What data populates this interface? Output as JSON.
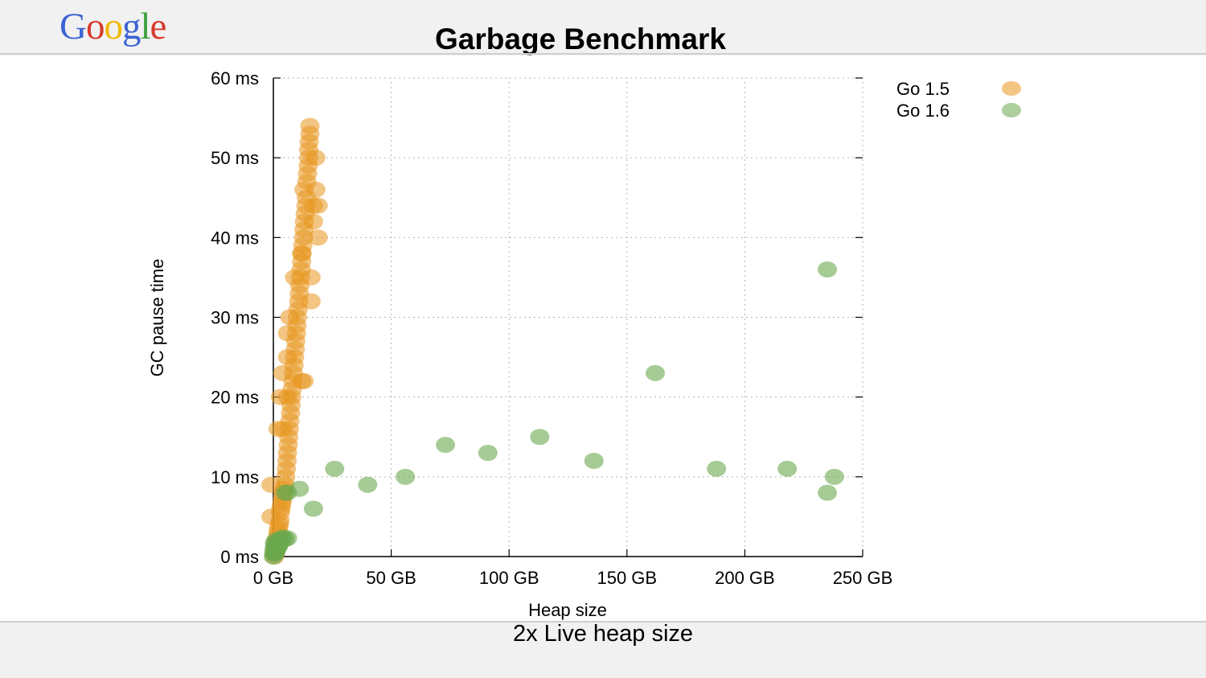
{
  "header": {
    "logo_text": "Google",
    "logo_letters": [
      {
        "ch": "G",
        "color": "#3c64d2"
      },
      {
        "ch": "o",
        "color": "#d83a2b"
      },
      {
        "ch": "o",
        "color": "#f1b800"
      },
      {
        "ch": "g",
        "color": "#3c64d2"
      },
      {
        "ch": "l",
        "color": "#3ea13f"
      },
      {
        "ch": "e",
        "color": "#d83a2b"
      }
    ],
    "title": "Garbage Benchmark"
  },
  "footer": {
    "caption": "2x Live heap size"
  },
  "chart_data": {
    "type": "scatter",
    "xlabel": "Heap size",
    "ylabel": "GC pause time",
    "xlim": [
      0,
      250
    ],
    "ylim": [
      0,
      60
    ],
    "x_ticks": [
      0,
      50,
      100,
      150,
      200,
      250
    ],
    "y_ticks": [
      0,
      10,
      20,
      30,
      40,
      50,
      60
    ],
    "x_tick_labels": [
      "0 GB",
      "50 GB",
      "100 GB",
      "150 GB",
      "200 GB",
      "250 GB"
    ],
    "y_tick_labels": [
      "0 ms",
      "10 ms",
      "20 ms",
      "30 ms",
      "40 ms",
      "50 ms",
      "60 ms"
    ],
    "grid": true,
    "legend_position": "top-right",
    "series": [
      {
        "name": "Go 1.5",
        "color": "#e8961e",
        "points": [
          [
            0.5,
            0
          ],
          [
            0.8,
            0.5
          ],
          [
            1,
            1
          ],
          [
            1.3,
            1.5
          ],
          [
            1.5,
            2
          ],
          [
            1.8,
            2.5
          ],
          [
            2,
            3
          ],
          [
            2.2,
            3.5
          ],
          [
            2.5,
            4
          ],
          [
            2.8,
            4.5
          ],
          [
            -1,
            5
          ],
          [
            3,
            5.5
          ],
          [
            3.2,
            6
          ],
          [
            3.5,
            6.5
          ],
          [
            3.8,
            7
          ],
          [
            4,
            7.5
          ],
          [
            4.2,
            8
          ],
          [
            4.5,
            8.5
          ],
          [
            -1,
            9
          ],
          [
            5,
            9
          ],
          [
            5.2,
            10
          ],
          [
            5.5,
            11
          ],
          [
            5.8,
            12
          ],
          [
            6,
            13
          ],
          [
            6.3,
            14
          ],
          [
            6.5,
            15
          ],
          [
            6.8,
            16
          ],
          [
            2,
            16
          ],
          [
            7,
            17
          ],
          [
            7.3,
            18
          ],
          [
            7.5,
            19
          ],
          [
            3,
            20
          ],
          [
            7.8,
            20
          ],
          [
            8,
            21
          ],
          [
            8.3,
            22
          ],
          [
            4,
            23
          ],
          [
            8.5,
            23
          ],
          [
            8.8,
            24
          ],
          [
            9,
            25
          ],
          [
            6,
            25
          ],
          [
            9.3,
            26
          ],
          [
            9.5,
            27
          ],
          [
            6,
            28
          ],
          [
            9.8,
            28
          ],
          [
            10,
            29
          ],
          [
            7,
            30
          ],
          [
            10.2,
            30
          ],
          [
            10.5,
            31
          ],
          [
            10.8,
            32
          ],
          [
            11,
            33
          ],
          [
            11.2,
            34
          ],
          [
            11.5,
            35
          ],
          [
            9,
            35
          ],
          [
            11.8,
            36
          ],
          [
            12,
            37
          ],
          [
            12.2,
            38
          ],
          [
            12.5,
            39
          ],
          [
            12.8,
            40
          ],
          [
            13,
            41
          ],
          [
            13.2,
            42
          ],
          [
            13.5,
            43
          ],
          [
            13.8,
            44
          ],
          [
            14,
            45
          ],
          [
            13,
            46
          ],
          [
            14.2,
            47
          ],
          [
            14.5,
            48
          ],
          [
            14.8,
            49
          ],
          [
            15,
            50
          ],
          [
            15,
            51
          ],
          [
            15.2,
            52
          ],
          [
            15.5,
            53
          ],
          [
            15.5,
            54
          ],
          [
            17,
            42
          ],
          [
            17,
            44
          ],
          [
            19,
            40
          ],
          [
            19,
            44
          ],
          [
            18,
            46
          ],
          [
            18,
            50
          ],
          [
            12,
            22
          ],
          [
            13,
            22
          ],
          [
            16,
            32
          ],
          [
            16,
            35
          ],
          [
            12,
            38
          ],
          [
            6,
            20
          ],
          [
            4,
            16
          ]
        ]
      },
      {
        "name": "Go 1.6",
        "color": "#6aa84f",
        "points": [
          [
            0,
            0
          ],
          [
            0.5,
            0.3
          ],
          [
            1,
            0.5
          ],
          [
            1.2,
            0.8
          ],
          [
            1.5,
            1
          ],
          [
            1.8,
            1.2
          ],
          [
            2,
            1.5
          ],
          [
            2.3,
            1.8
          ],
          [
            2.5,
            2
          ],
          [
            3,
            2.2
          ],
          [
            4,
            2.4
          ],
          [
            0.3,
            1
          ],
          [
            0.8,
            1.5
          ],
          [
            1,
            2
          ],
          [
            0.5,
            1.7
          ],
          [
            2.2,
            1.3
          ],
          [
            3,
            1.8
          ],
          [
            5,
            2.2
          ],
          [
            6,
            2.3
          ],
          [
            0.2,
            0.5
          ],
          [
            5,
            8
          ],
          [
            6,
            8
          ],
          [
            11,
            8.5
          ],
          [
            17,
            6
          ],
          [
            26,
            11
          ],
          [
            40,
            9
          ],
          [
            56,
            10
          ],
          [
            73,
            14
          ],
          [
            91,
            13
          ],
          [
            113,
            15
          ],
          [
            136,
            12
          ],
          [
            162,
            23
          ],
          [
            188,
            11
          ],
          [
            218,
            11
          ],
          [
            235,
            36
          ],
          [
            238,
            10
          ],
          [
            235,
            8
          ]
        ]
      }
    ]
  }
}
